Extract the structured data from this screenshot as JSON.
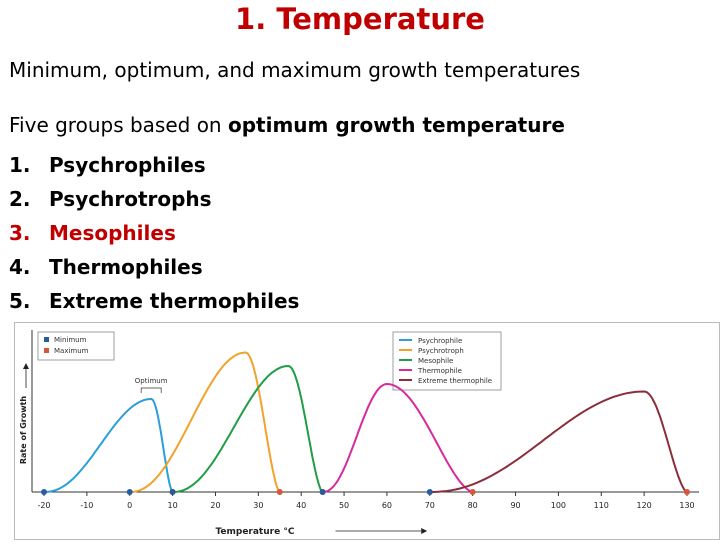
{
  "slide": {
    "title": "1. Temperature",
    "subtitle": "Minimum, optimum, and maximum growth temperatures",
    "intro_prefix": "Five groups based on ",
    "intro_bold": "optimum growth temperature",
    "groups": [
      {
        "num": "1.",
        "label": "Psychrophiles"
      },
      {
        "num": "2.",
        "label": "Psychrotrophs"
      },
      {
        "num": "3.",
        "label": "Mesophiles"
      },
      {
        "num": "4.",
        "label": "Thermophiles"
      },
      {
        "num": "5.",
        "label": "Extreme thermophiles"
      }
    ],
    "highlight_color": "#c00000"
  },
  "chart_data": {
    "type": "line",
    "xlabel": "Temperature °C",
    "ylabel": "Rate of Growth",
    "xlim": [
      -20,
      130
    ],
    "xticks": [
      -20,
      -10,
      0,
      10,
      20,
      30,
      40,
      50,
      60,
      70,
      80,
      90,
      100,
      110,
      120,
      130
    ],
    "annotation": "Optimum",
    "marker_legend": [
      {
        "name": "Minimum",
        "color": "#2a5aa0"
      },
      {
        "name": "Maximum",
        "color": "#d9553a"
      }
    ],
    "series": [
      {
        "name": "Psychrophile",
        "color": "#2a9fd8",
        "minimum": -20,
        "optimum": 5,
        "maximum": 10,
        "peak": 0.62
      },
      {
        "name": "Psychrotroph",
        "color": "#f2a22c",
        "minimum": 0,
        "optimum": 27,
        "maximum": 35,
        "peak": 0.93
      },
      {
        "name": "Mesophile",
        "color": "#1f9e46",
        "minimum": 10,
        "optimum": 37,
        "maximum": 45,
        "peak": 0.84
      },
      {
        "name": "Thermophile",
        "color": "#d62a9e",
        "minimum": 45,
        "optimum": 60,
        "maximum": 80,
        "peak": 0.72
      },
      {
        "name": "Extreme thermophile",
        "color": "#8b2e3c",
        "minimum": 70,
        "optimum": 120,
        "maximum": 130,
        "peak": 0.67
      }
    ]
  }
}
